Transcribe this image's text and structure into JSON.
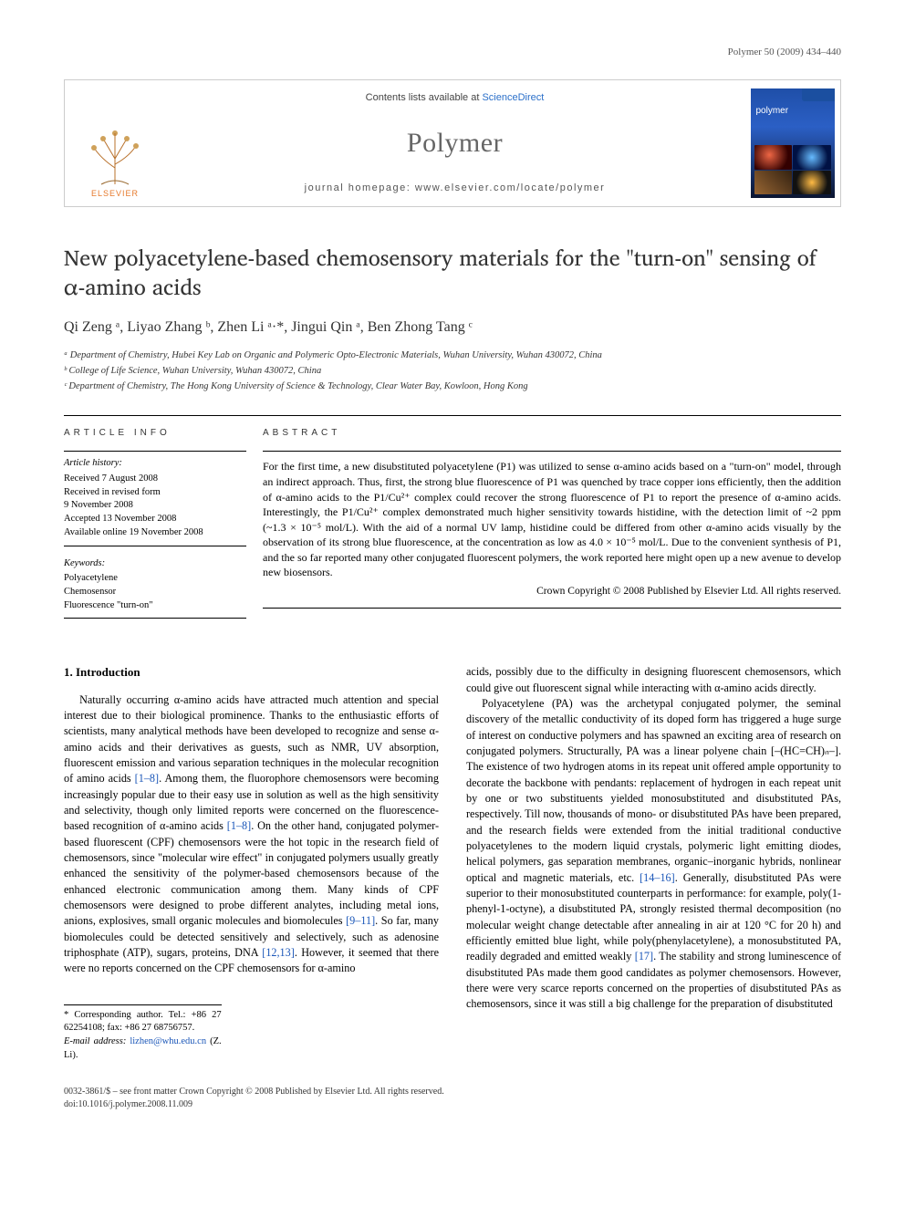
{
  "running_header": "Polymer 50 (2009) 434–440",
  "banner": {
    "contents_prefix": "Contents lists available at ",
    "contents_link": "ScienceDirect",
    "journal_name": "Polymer",
    "homepage_prefix": "journal homepage: ",
    "homepage_url": "www.elsevier.com/locate/polymer",
    "publisher_label": "ELSEVIER",
    "cover_label": "polymer"
  },
  "title": "New polyacetylene-based chemosensory materials for the \"turn-on\" sensing of α-amino acids",
  "authors_html": "Qi Zeng ᵃ, Liyao Zhang ᵇ, Zhen Li ᵃ·*, Jingui Qin ᵃ, Ben Zhong Tang ᶜ",
  "affiliations": [
    "ᵃ Department of Chemistry, Hubei Key Lab on Organic and Polymeric Opto-Electronic Materials, Wuhan University, Wuhan 430072, China",
    "ᵇ College of Life Science, Wuhan University, Wuhan 430072, China",
    "ᶜ Department of Chemistry, The Hong Kong University of Science & Technology, Clear Water Bay, Kowloon, Hong Kong"
  ],
  "article_info": {
    "label": "ARTICLE INFO",
    "history_label": "Article history:",
    "history": [
      "Received 7 August 2008",
      "Received in revised form",
      "9 November 2008",
      "Accepted 13 November 2008",
      "Available online 19 November 2008"
    ],
    "keywords_label": "Keywords:",
    "keywords": [
      "Polyacetylene",
      "Chemosensor",
      "Fluorescence \"turn-on\""
    ]
  },
  "abstract": {
    "label": "ABSTRACT",
    "body": "For the first time, a new disubstituted polyacetylene (P1) was utilized to sense α-amino acids based on a \"turn-on\" model, through an indirect approach. Thus, first, the strong blue fluorescence of P1 was quenched by trace copper ions efficiently, then the addition of α-amino acids to the P1/Cu²⁺ complex could recover the strong fluorescence of P1 to report the presence of α-amino acids. Interestingly, the P1/Cu²⁺ complex demonstrated much higher sensitivity towards histidine, with the detection limit of ~2 ppm (~1.3 × 10⁻⁵ mol/L). With the aid of a normal UV lamp, histidine could be differed from other α-amino acids visually by the observation of its strong blue fluorescence, at the concentration as low as 4.0 × 10⁻⁵ mol/L. Due to the convenient synthesis of P1, and the so far reported many other conjugated fluorescent polymers, the work reported here might open up a new avenue to develop new biosensors.",
    "copyright": "Crown Copyright © 2008 Published by Elsevier Ltd. All rights reserved."
  },
  "body": {
    "section_heading": "1. Introduction",
    "para1": "Naturally occurring α-amino acids have attracted much attention and special interest due to their biological prominence. Thanks to the enthusiastic efforts of scientists, many analytical methods have been developed to recognize and sense α-amino acids and their derivatives as guests, such as NMR, UV absorption, fluorescent emission and various separation techniques in the molecular recognition of amino acids [1–8]. Among them, the fluorophore chemosensors were becoming increasingly popular due to their easy use in solution as well as the high sensitivity and selectivity, though only limited reports were concerned on the fluorescence-based recognition of α-amino acids [1–8]. On the other hand, conjugated polymer-based fluorescent (CPF) chemosensors were the hot topic in the research field of chemosensors, since \"molecular wire effect\" in conjugated polymers usually greatly enhanced the sensitivity of the polymer-based chemosensors because of the enhanced electronic communication among them. Many kinds of CPF chemosensors were designed to probe different analytes, including metal ions, anions, explosives, small organic molecules and biomolecules [9–11]. So far, many biomolecules could be detected sensitively and selectively, such as adenosine triphosphate (ATP), sugars, proteins, DNA [12,13]. However, it seemed that there were no reports concerned on the CPF chemosensors for α-amino",
    "para2a": "acids, possibly due to the difficulty in designing fluorescent chemosensors, which could give out fluorescent signal while interacting with α-amino acids directly.",
    "para2b": "Polyacetylene (PA) was the archetypal conjugated polymer, the seminal discovery of the metallic conductivity of its doped form has triggered a huge surge of interest on conductive polymers and has spawned an exciting area of research on conjugated polymers. Structurally, PA was a linear polyene chain [–(HC=CH)ₙ–]. The existence of two hydrogen atoms in its repeat unit offered ample opportunity to decorate the backbone with pendants: replacement of hydrogen in each repeat unit by one or two substituents yielded monosubstituted and disubstituted PAs, respectively. Till now, thousands of mono- or disubstituted PAs have been prepared, and the research fields were extended from the initial traditional conductive polyacetylenes to the modern liquid crystals, polymeric light emitting diodes, helical polymers, gas separation membranes, organic–inorganic hybrids, nonlinear optical and magnetic materials, etc. [14–16]. Generally, disubstituted PAs were superior to their monosubstituted counterparts in performance: for example, poly(1-phenyl-1-octyne), a disubstituted PA, strongly resisted thermal decomposition (no molecular weight change detectable after annealing in air at 120 °C for 20 h) and efficiently emitted blue light, while poly(phenylacetylene), a monosubstituted PA, readily degraded and emitted weakly [17]. The stability and strong luminescence of disubstituted PAs made them good candidates as polymer chemosensors. However, there were very scarce reports concerned on the properties of disubstituted PAs as chemosensors, since it was still a big challenge for the preparation of disubstituted"
  },
  "corresponding": {
    "line1": "* Corresponding author. Tel.: +86 27 62254108; fax: +86 27 68756757.",
    "email_label": "E-mail address: ",
    "email": "lizhen@whu.edu.cn",
    "email_suffix": " (Z. Li)."
  },
  "footer": {
    "line1": "0032-3861/$ – see front matter Crown Copyright © 2008 Published by Elsevier Ltd. All rights reserved.",
    "line2": "doi:10.1016/j.polymer.2008.11.009"
  },
  "colors": {
    "link": "#1a56b8",
    "elsevier_orange": "#e6792b",
    "journal_grey": "#666666",
    "rule": "#000000",
    "banner_border": "#cccccc"
  }
}
